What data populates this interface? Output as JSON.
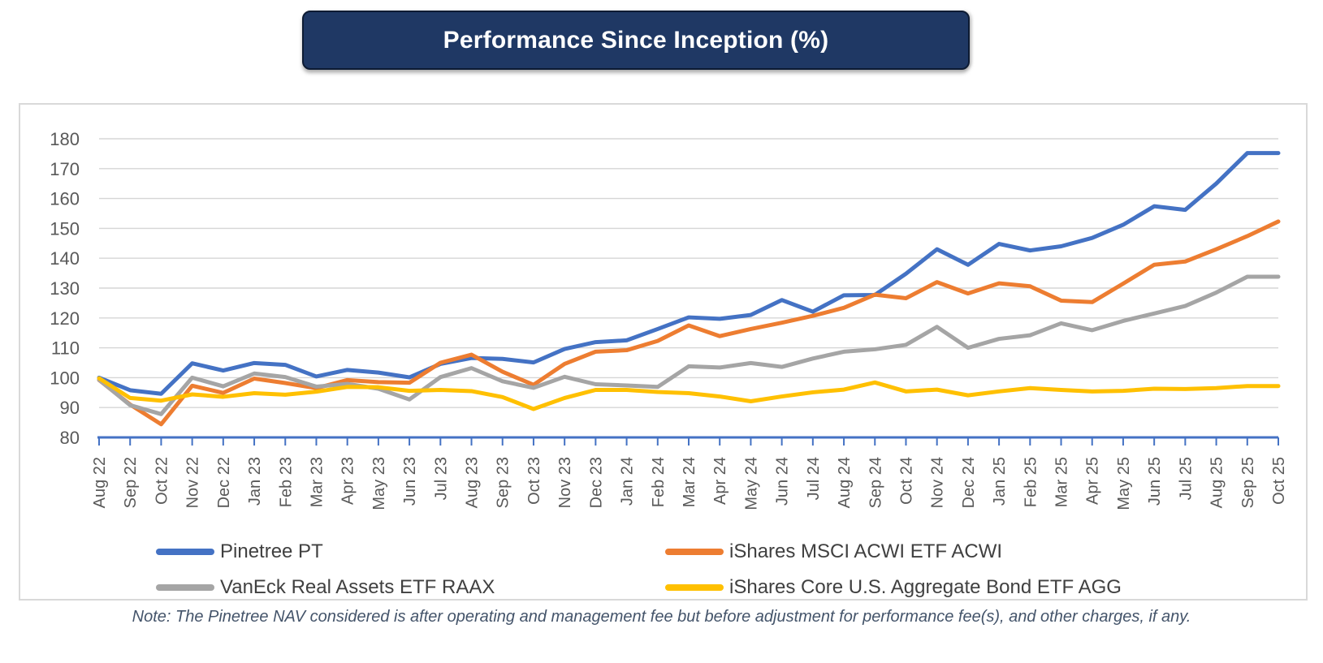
{
  "title": {
    "text": "Performance Since Inception (%)"
  },
  "note": {
    "text": "Note: The Pinetree NAV considered is after operating and management fee but before adjustment for performance fee(s), and other charges, if any."
  },
  "colors": {
    "banner_bg": "#1F3864",
    "banner_text": "#FFFFFF",
    "axis_labels": "#595959",
    "gridline": "#D6D6D6",
    "legend_text": "#404040",
    "note_text": "#44546A"
  },
  "chart_data": {
    "type": "line",
    "title": "Performance Since Inception (%)",
    "xlabel": "",
    "ylabel": "",
    "ylim": [
      80,
      180
    ],
    "y_ticks": [
      80,
      90,
      100,
      110,
      120,
      130,
      140,
      150,
      160,
      170,
      180
    ],
    "grid": true,
    "legend_position": "bottom",
    "axis_color": "#4472C4",
    "x_labels": [
      "Aug 22",
      "Sep 22",
      "Oct 22",
      "Nov 22",
      "Dec 22",
      "Jan 23",
      "Feb 23",
      "Mar 23",
      "Apr 23",
      "May 23",
      "Jun 23",
      "Jul 23",
      "Aug 23",
      "Sep 23",
      "Oct 23",
      "Nov 23",
      "Dec 23",
      "Jan 24",
      "Feb 24",
      "Mar 24",
      "Apr 24",
      "May 24",
      "Jun 24",
      "Jul 24",
      "Aug 24",
      "Sep 24",
      "Oct 24",
      "Nov 24",
      "Dec 24",
      "Jan 25",
      "Feb 25",
      "Mar 25",
      "Apr 25",
      "May 25",
      "Jun 25",
      "Jul 25",
      "Aug 25",
      "Sep 25",
      "Oct 25"
    ],
    "series": [
      {
        "name": "Pinetree PT",
        "color": "#4472C4",
        "values": [
          100,
          95.8,
          94.6,
          104.8,
          102.4,
          104.9,
          104.3,
          100.4,
          102.6,
          101.7,
          100.1,
          104.6,
          106.6,
          106.3,
          105.1,
          109.6,
          111.9,
          112.5,
          116.3,
          120.2,
          119.7,
          121.0,
          126.0,
          122.1,
          127.6,
          127.7,
          134.8,
          143.0,
          137.8,
          144.8,
          142.6,
          144.0,
          146.8,
          151.2,
          157.4,
          156.2,
          165.0,
          175.2,
          175.2
        ]
      },
      {
        "name": "iShares MSCI ACWI ETF ACWI",
        "color": "#ED7D31",
        "values": [
          99.2,
          91.0,
          84.4,
          97.3,
          94.9,
          99.7,
          98.2,
          96.5,
          99.2,
          98.5,
          98.3,
          105.0,
          107.7,
          102.0,
          97.6,
          104.6,
          108.7,
          109.2,
          112.3,
          117.5,
          113.9,
          116.3,
          118.4,
          120.7,
          123.4,
          127.8,
          126.6,
          132.0,
          128.2,
          131.6,
          130.6,
          125.8,
          125.3,
          131.5,
          137.8,
          138.9,
          143.0,
          147.4,
          152.3
        ]
      },
      {
        "name": "VanEck Real Assets ETF RAAX",
        "color": "#A5A5A5",
        "values": [
          99.3,
          90.8,
          87.8,
          100.0,
          97.1,
          101.4,
          100.2,
          97.0,
          97.9,
          96.3,
          92.7,
          100.2,
          103.2,
          98.8,
          96.6,
          100.3,
          97.8,
          97.4,
          96.9,
          103.8,
          103.4,
          104.9,
          103.6,
          106.4,
          108.7,
          109.5,
          111.0,
          117.0,
          110.0,
          113.0,
          114.2,
          118.2,
          115.9,
          119.0,
          121.5,
          124.0,
          128.5,
          133.8,
          133.8
        ]
      },
      {
        "name": "iShares Core U.S. Aggregate Bond ETF AGG",
        "color": "#FFC000",
        "values": [
          99.8,
          93.2,
          92.3,
          94.4,
          93.6,
          94.8,
          94.3,
          95.3,
          96.9,
          96.8,
          95.6,
          95.9,
          95.5,
          93.5,
          89.5,
          93.2,
          95.9,
          95.9,
          95.2,
          94.8,
          93.7,
          92.1,
          93.7,
          95.1,
          96.0,
          98.4,
          95.4,
          96.0,
          94.1,
          95.4,
          96.5,
          95.9,
          95.4,
          95.6,
          96.3,
          96.2,
          96.5,
          97.2,
          97.2
        ]
      }
    ]
  }
}
